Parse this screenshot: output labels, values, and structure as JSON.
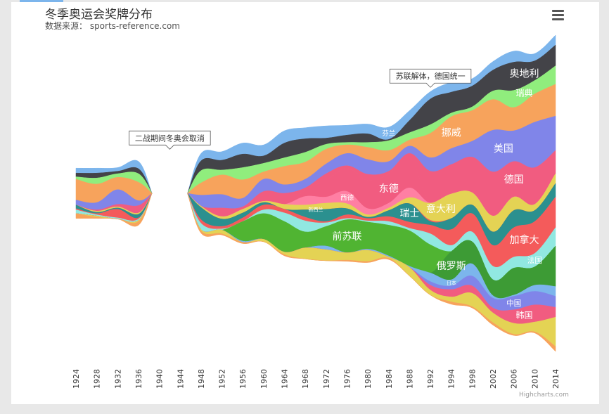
{
  "chart_data": {
    "type": "area",
    "stacking": "streamgraph",
    "title": "冬季奥运会奖牌分布",
    "subtitle": "数据来源：  sports-reference.com",
    "credits": "Highcharts.com",
    "categories": [
      "1924",
      "1928",
      "1932",
      "1936",
      "1940",
      "1944",
      "1948",
      "1952",
      "1956",
      "1960",
      "1964",
      "1968",
      "1972",
      "1976",
      "1980",
      "1984",
      "1988",
      "1992",
      "1994",
      "1998",
      "2002",
      "2006",
      "2010",
      "2014"
    ],
    "ylabel": "",
    "xlabel": "",
    "legend": "none",
    "annotations": [
      {
        "text": "二战期间冬奥会取消",
        "category": "1942"
      },
      {
        "text": "苏联解体，德国统一",
        "category": "1992"
      }
    ],
    "series": [
      {
        "name": "芬兰",
        "color": "#7cb5ec",
        "values": [
          4,
          4,
          3,
          6,
          0,
          0,
          6,
          7,
          9,
          9,
          10,
          9,
          10,
          8,
          8,
          10,
          8,
          6,
          8,
          6,
          7,
          9,
          6,
          8
        ]
      },
      {
        "name": "奥地利",
        "color": "#434348",
        "values": [
          3,
          4,
          2,
          4,
          0,
          0,
          8,
          8,
          11,
          6,
          12,
          11,
          5,
          6,
          7,
          1,
          10,
          21,
          17,
          17,
          17,
          23,
          16,
          17
        ]
      },
      {
        "name": "瑞典",
        "color": "#90ed7d",
        "values": [
          2,
          5,
          3,
          7,
          0,
          0,
          10,
          4,
          10,
          7,
          7,
          8,
          4,
          2,
          4,
          8,
          6,
          7,
          3,
          3,
          7,
          14,
          11,
          15
        ]
      },
      {
        "name": "挪威",
        "color": "#f7a35c",
        "values": [
          17,
          15,
          10,
          15,
          0,
          0,
          10,
          16,
          15,
          6,
          15,
          14,
          12,
          7,
          10,
          9,
          5,
          20,
          26,
          25,
          25,
          19,
          23,
          26
        ]
      },
      {
        "name": "美国",
        "color": "#8085e9",
        "values": [
          4,
          6,
          12,
          4,
          0,
          0,
          9,
          11,
          7,
          10,
          7,
          7,
          8,
          10,
          12,
          8,
          6,
          11,
          13,
          13,
          34,
          25,
          37,
          28
        ]
      },
      {
        "name": "德国",
        "color": "#f15c80",
        "values": [
          0,
          1,
          2,
          6,
          0,
          0,
          0,
          7,
          2,
          8,
          9,
          2,
          5,
          2,
          5,
          2,
          3,
          26,
          24,
          29,
          36,
          29,
          30,
          19
        ]
      },
      {
        "name": "东德",
        "color": "#f15c80",
        "values": [
          0,
          0,
          0,
          0,
          0,
          0,
          0,
          0,
          0,
          0,
          0,
          5,
          14,
          19,
          23,
          24,
          25,
          0,
          0,
          0,
          0,
          0,
          0,
          0
        ]
      },
      {
        "name": "西德",
        "color": "#ff7fa3",
        "values": [
          0,
          0,
          0,
          0,
          0,
          0,
          0,
          0,
          0,
          0,
          0,
          7,
          5,
          10,
          5,
          4,
          8,
          0,
          0,
          0,
          0,
          0,
          0,
          0
        ]
      },
      {
        "name": "意大利",
        "color": "#e4d354",
        "values": [
          0,
          1,
          1,
          1,
          0,
          0,
          1,
          2,
          3,
          1,
          4,
          4,
          5,
          4,
          2,
          2,
          5,
          14,
          20,
          10,
          13,
          11,
          5,
          8
        ]
      },
      {
        "name": "新西兰",
        "color": "#f45b5b",
        "values": [
          0,
          0,
          0,
          0,
          0,
          0,
          0,
          0,
          0,
          0,
          0,
          0,
          0,
          0,
          0,
          0,
          0,
          1,
          0,
          0,
          0,
          0,
          0,
          0
        ]
      },
      {
        "name": "瑞士",
        "color": "#2b908f",
        "values": [
          3,
          1,
          1,
          3,
          0,
          0,
          10,
          6,
          4,
          2,
          0,
          6,
          10,
          5,
          1,
          5,
          15,
          3,
          9,
          7,
          11,
          14,
          9,
          11
        ]
      },
      {
        "name": "加拿大",
        "color": "#f45b5b",
        "values": [
          1,
          1,
          7,
          1,
          0,
          0,
          3,
          2,
          3,
          4,
          3,
          3,
          1,
          3,
          2,
          4,
          5,
          7,
          13,
          15,
          17,
          24,
          26,
          25
        ]
      },
      {
        "name": "法国",
        "color": "#91e8e1",
        "values": [
          3,
          1,
          1,
          1,
          0,
          0,
          5,
          1,
          0,
          3,
          7,
          9,
          3,
          1,
          1,
          3,
          2,
          9,
          5,
          8,
          11,
          9,
          11,
          15
        ]
      },
      {
        "name": "前苏联",
        "color": "#50b432",
        "values": [
          0,
          0,
          0,
          0,
          0,
          0,
          0,
          0,
          16,
          21,
          25,
          13,
          16,
          27,
          22,
          25,
          29,
          23,
          0,
          0,
          0,
          0,
          0,
          0
        ]
      },
      {
        "name": "俄罗斯",
        "color": "#3d9b35",
        "values": [
          0,
          0,
          0,
          0,
          0,
          0,
          0,
          0,
          0,
          0,
          0,
          0,
          0,
          0,
          0,
          0,
          0,
          0,
          23,
          18,
          13,
          22,
          15,
          33
        ]
      },
      {
        "name": "日本",
        "color": "#7cb5ec",
        "values": [
          0,
          0,
          0,
          0,
          0,
          0,
          0,
          0,
          1,
          0,
          0,
          0,
          3,
          0,
          1,
          1,
          1,
          7,
          5,
          10,
          2,
          1,
          5,
          8
        ]
      },
      {
        "name": "中国",
        "color": "#8085e9",
        "values": [
          0,
          0,
          0,
          0,
          0,
          0,
          0,
          0,
          0,
          0,
          0,
          0,
          0,
          0,
          0,
          0,
          0,
          3,
          3,
          8,
          8,
          11,
          11,
          9
        ]
      },
      {
        "name": "韩国",
        "color": "#f15c80",
        "values": [
          0,
          0,
          0,
          0,
          0,
          0,
          0,
          0,
          0,
          0,
          0,
          0,
          0,
          0,
          0,
          0,
          0,
          4,
          6,
          6,
          4,
          11,
          14,
          8
        ]
      },
      {
        "name": "荷兰",
        "color": "#e4d354",
        "values": [
          0,
          1,
          0,
          1,
          0,
          0,
          1,
          3,
          0,
          2,
          2,
          9,
          9,
          6,
          9,
          1,
          7,
          4,
          4,
          11,
          8,
          9,
          8,
          24
        ]
      },
      {
        "name": "英国",
        "color": "#f7a35c",
        "values": [
          4,
          1,
          0,
          3,
          0,
          0,
          2,
          1,
          1,
          0,
          1,
          0,
          0,
          1,
          1,
          1,
          0,
          0,
          2,
          1,
          2,
          1,
          1,
          4
        ]
      }
    ],
    "labels_shown": [
      {
        "series": "芬兰",
        "category": "1984",
        "text": "芬兰"
      },
      {
        "series": "奥地利",
        "category": "2010",
        "text": "奥地利"
      },
      {
        "series": "瑞典",
        "category": "2010",
        "text": "瑞典"
      },
      {
        "series": "挪威",
        "category": "1996",
        "text": "挪威"
      },
      {
        "series": "美国",
        "category": "2006",
        "text": "美国"
      },
      {
        "series": "德国",
        "category": "2008",
        "text": "德国"
      },
      {
        "series": "东德",
        "category": "1984",
        "text": "东德"
      },
      {
        "series": "西德",
        "category": "1976",
        "text": "西德"
      },
      {
        "series": "意大利",
        "category": "1994",
        "text": "意大利"
      },
      {
        "series": "新西兰",
        "category": "1970",
        "text": "新西兰"
      },
      {
        "series": "瑞士",
        "category": "1988",
        "text": "瑞士"
      },
      {
        "series": "加拿大",
        "category": "2010",
        "text": "加拿大"
      },
      {
        "series": "法国",
        "category": "2012",
        "text": "法国"
      },
      {
        "series": "前苏联",
        "category": "1976",
        "text": "前苏联"
      },
      {
        "series": "俄罗斯",
        "category": "1996",
        "text": "俄罗斯"
      },
      {
        "series": "日本",
        "category": "1996",
        "text": "日本"
      },
      {
        "series": "中国",
        "category": "2008",
        "text": "中国"
      },
      {
        "series": "韩国",
        "category": "2010",
        "text": "韩国"
      }
    ]
  }
}
